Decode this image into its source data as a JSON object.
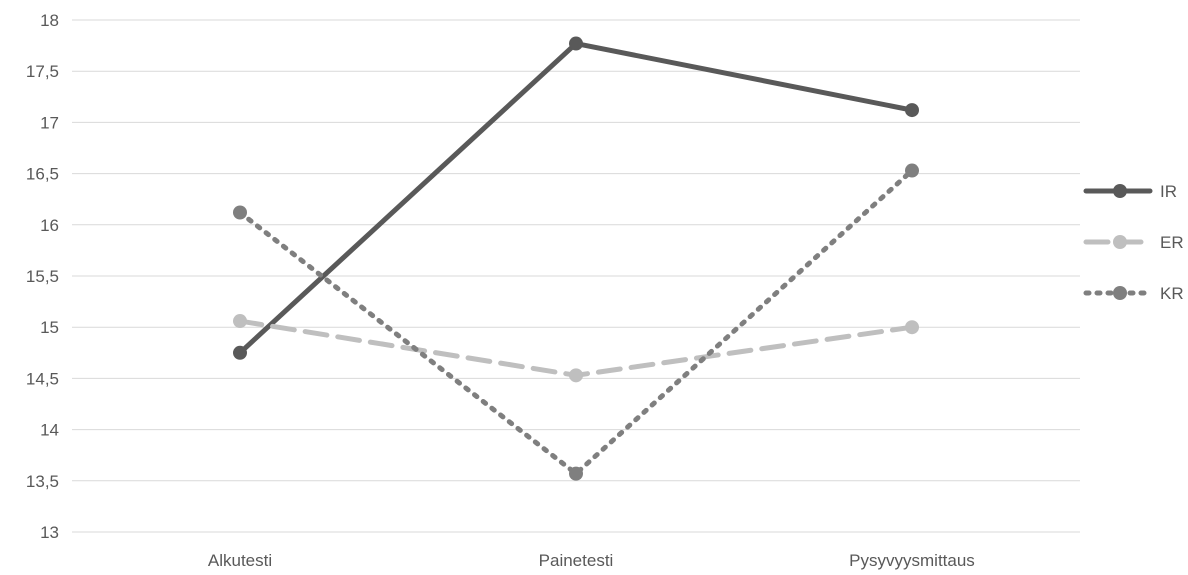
{
  "chart_data": {
    "type": "line",
    "title": "",
    "xlabel": "",
    "ylabel": "",
    "categories": [
      "Alkutesti",
      "Painetesti",
      "Pysyvyysmittaus"
    ],
    "ylim": [
      13,
      18
    ],
    "y_ticks": [
      {
        "value": 13,
        "label": "13"
      },
      {
        "value": 13.5,
        "label": "13,5"
      },
      {
        "value": 14,
        "label": "14"
      },
      {
        "value": 14.5,
        "label": "14,5"
      },
      {
        "value": 15,
        "label": "15"
      },
      {
        "value": 15.5,
        "label": "15,5"
      },
      {
        "value": 16,
        "label": "16"
      },
      {
        "value": 16.5,
        "label": "16,5"
      },
      {
        "value": 17,
        "label": "17"
      },
      {
        "value": 17.5,
        "label": "17,5"
      },
      {
        "value": 18,
        "label": "18"
      }
    ],
    "grid": true,
    "legend_position": "right",
    "series": [
      {
        "name": "IR",
        "values": [
          14.75,
          17.77,
          17.12
        ],
        "color": "#595959",
        "dash": "solid"
      },
      {
        "name": "ER",
        "values": [
          15.06,
          14.53,
          15.0
        ],
        "color": "#bfbfbf",
        "dash": "dashed"
      },
      {
        "name": "KR",
        "values": [
          16.12,
          13.57,
          16.53
        ],
        "color": "#7f7f7f",
        "dash": "dotted"
      }
    ]
  }
}
